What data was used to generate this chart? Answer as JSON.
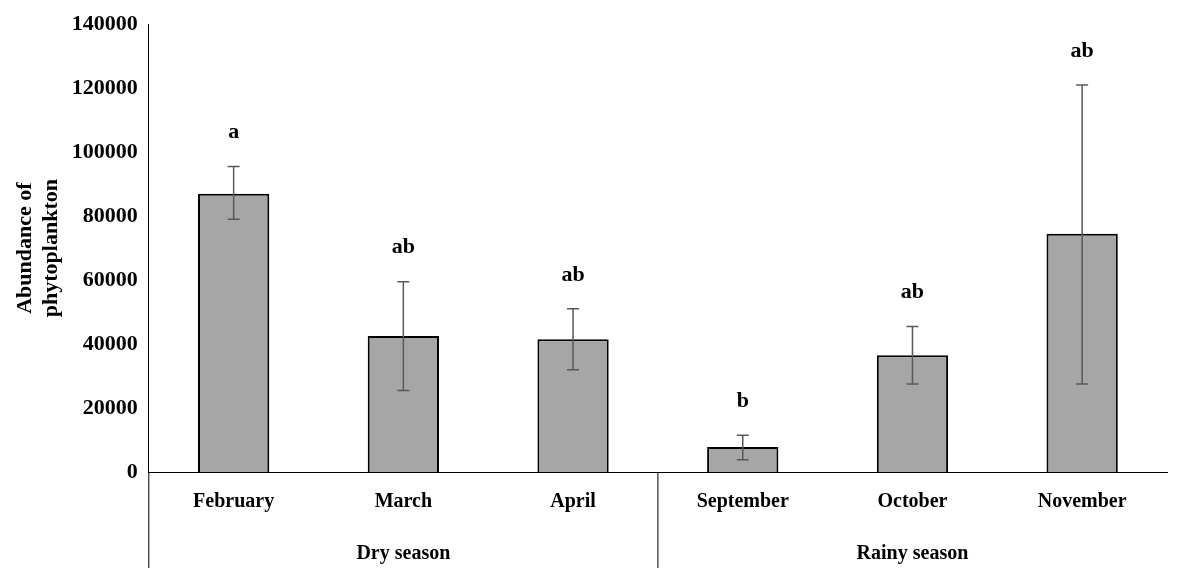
{
  "chart_data": {
    "type": "bar",
    "ylabel": "Abundance of phytoplankton",
    "categories": [
      "February",
      "March",
      "April",
      "September",
      "October",
      "November"
    ],
    "values": [
      87000,
      42500,
      41500,
      7800,
      36500,
      74500
    ],
    "errors": [
      [
        79000,
        95500
      ],
      [
        25500,
        59500
      ],
      [
        32000,
        51000
      ],
      [
        3800,
        11500
      ],
      [
        27500,
        45500
      ],
      [
        27500,
        121000
      ]
    ],
    "color": "#a6a6a6",
    "ylim": [
      0,
      140000
    ],
    "yticks": [
      0,
      20000,
      40000,
      60000,
      80000,
      100000,
      120000,
      140000
    ],
    "grid": false,
    "legend": false,
    "annotations": [
      "a",
      "ab",
      "ab",
      "b",
      "ab",
      "ab",
      "Dry season",
      "Rainy season"
    ]
  }
}
